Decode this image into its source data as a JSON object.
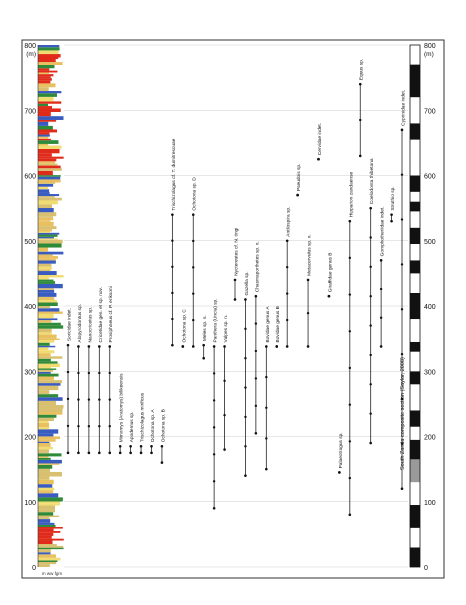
{
  "chart_data": {
    "type": "range",
    "axis": {
      "unit_label": "(m)",
      "min": 0,
      "max": 800,
      "ticks": [
        0,
        100,
        200,
        300,
        400,
        500,
        600,
        700,
        800
      ],
      "grid": true
    },
    "column_label": "South Zanda composite section (Saylor, 2008)",
    "lith_caption": "m ww fgm",
    "taxa": [
      {
        "name": "Soricidae indet.",
        "bottom": 175,
        "top": 340
      },
      {
        "name": "Alopyrodontus sp.",
        "bottom": 175,
        "top": 338
      },
      {
        "name": "Nanocricetus sp.",
        "bottom": 175,
        "top": 338
      },
      {
        "name": "Cricetidae gen. et sp. nov.",
        "bottom": 175,
        "top": 338
      },
      {
        "name": "Prosiphneus cf. P. eriksoni",
        "bottom": 175,
        "top": 338
      },
      {
        "name": "Mimomys (Aratomys) bilikeensis",
        "bottom": 175,
        "top": 185
      },
      {
        "name": "Apodemus sp.",
        "bottom": 175,
        "top": 185
      },
      {
        "name": "Trischizolagus mirificus",
        "bottom": 175,
        "top": 185
      },
      {
        "name": "Ochotona sp. A",
        "bottom": 175,
        "top": 185
      },
      {
        "name": "Ochotona sp. B",
        "bottom": 160,
        "top": 185
      },
      {
        "name": "Trischizolagus cf. T. dumitrescuae",
        "bottom": 340,
        "top": 540
      },
      {
        "name": "Ochotona sp. C",
        "bottom": 338,
        "top": 338
      },
      {
        "name": "Ochotona sp. D",
        "bottom": 338,
        "top": 540
      },
      {
        "name": "Meles sp. n.",
        "bottom": 320,
        "top": 340
      },
      {
        "name": "Panthera (Uncia) sp.",
        "bottom": 90,
        "top": 338
      },
      {
        "name": "Vulpes sp. n.",
        "bottom": 180,
        "top": 338
      },
      {
        "name": "Nyctereutes cf. N. tingi",
        "bottom": 410,
        "top": 440
      },
      {
        "name": "Gazella sp.",
        "bottom": 140,
        "top": 410
      },
      {
        "name": "Chasmaporthetes sp. n.",
        "bottom": 205,
        "top": 415
      },
      {
        "name": "Bovidae genus A",
        "bottom": 150,
        "top": 338
      },
      {
        "name": "Bovidae genus B",
        "bottom": 338,
        "top": 338
      },
      {
        "name": "Antilospira sp.",
        "bottom": 338,
        "top": 500
      },
      {
        "name": "Pseudois sp.",
        "bottom": 570,
        "top": 570
      },
      {
        "name": "Metacervulus sp. n.",
        "bottom": 338,
        "top": 440
      },
      {
        "name": "Cervidae indet.",
        "bottom": 625,
        "top": 625
      },
      {
        "name": "Giraffidae genus B",
        "bottom": 415,
        "top": 415
      },
      {
        "name": "Palaeotragus sp.",
        "bottom": 145,
        "top": 145
      },
      {
        "name": "Hipparion zandaense",
        "bottom": 80,
        "top": 530
      },
      {
        "name": "Equus sp.",
        "bottom": 630,
        "top": 740
      },
      {
        "name": "Coelodonta thibetana",
        "bottom": 190,
        "top": 550
      },
      {
        "name": "Gomphotheriidae indet.",
        "bottom": 338,
        "top": 470
      },
      {
        "name": "Struthio sp.",
        "bottom": 530,
        "top": 540
      },
      {
        "name": "Cyprinidae indet.",
        "bottom": 120,
        "top": 670
      }
    ],
    "magnetostratigraphy": [
      {
        "from": 0,
        "to": 30,
        "polarity": "normal"
      },
      {
        "from": 30,
        "to": 60,
        "polarity": "reverse"
      },
      {
        "from": 60,
        "to": 95,
        "polarity": "normal"
      },
      {
        "from": 95,
        "to": 130,
        "polarity": "reverse"
      },
      {
        "from": 130,
        "to": 165,
        "polarity": "uncertain"
      },
      {
        "from": 165,
        "to": 195,
        "polarity": "normal"
      },
      {
        "from": 195,
        "to": 215,
        "polarity": "reverse"
      },
      {
        "from": 215,
        "to": 240,
        "polarity": "normal"
      },
      {
        "from": 240,
        "to": 280,
        "polarity": "reverse"
      },
      {
        "from": 280,
        "to": 300,
        "polarity": "normal"
      },
      {
        "from": 300,
        "to": 330,
        "polarity": "reverse"
      },
      {
        "from": 330,
        "to": 345,
        "polarity": "normal"
      },
      {
        "from": 345,
        "to": 380,
        "polarity": "reverse"
      },
      {
        "from": 380,
        "to": 420,
        "polarity": "normal"
      },
      {
        "from": 420,
        "to": 450,
        "polarity": "reverse"
      },
      {
        "from": 450,
        "to": 470,
        "polarity": "normal"
      },
      {
        "from": 470,
        "to": 495,
        "polarity": "reverse"
      },
      {
        "from": 495,
        "to": 520,
        "polarity": "normal"
      },
      {
        "from": 520,
        "to": 545,
        "polarity": "reverse"
      },
      {
        "from": 545,
        "to": 560,
        "polarity": "normal"
      },
      {
        "from": 560,
        "to": 575,
        "polarity": "reverse"
      },
      {
        "from": 575,
        "to": 600,
        "polarity": "normal"
      },
      {
        "from": 600,
        "to": 655,
        "polarity": "reverse"
      },
      {
        "from": 655,
        "to": 680,
        "polarity": "normal"
      },
      {
        "from": 680,
        "to": 720,
        "polarity": "reverse"
      },
      {
        "from": 720,
        "to": 770,
        "polarity": "normal"
      },
      {
        "from": 770,
        "to": 800,
        "polarity": "reverse"
      }
    ],
    "lithology_colors": [
      "#e8c060",
      "#f0dc70",
      "#d8c070",
      "#3a5cc0",
      "#2f8a3a",
      "#e02a1a",
      "#9a9a9a"
    ]
  }
}
